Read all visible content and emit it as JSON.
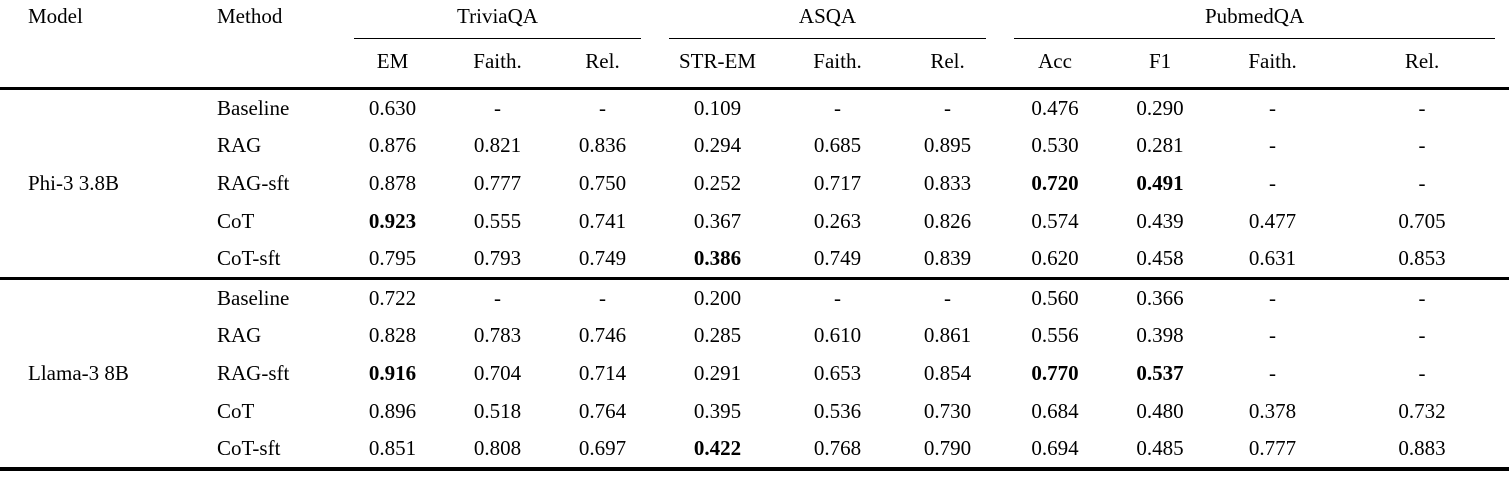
{
  "colors": {
    "background": "#ffffff",
    "text": "#000000",
    "rule": "#000000"
  },
  "table": {
    "header": {
      "model": "Model",
      "method": "Method",
      "groups": [
        {
          "label": "TriviaQA",
          "subcols": [
            "EM",
            "Faith.",
            "Rel."
          ]
        },
        {
          "label": "ASQA",
          "subcols": [
            "STR-EM",
            "Faith.",
            "Rel."
          ]
        },
        {
          "label": "PubmedQA",
          "subcols": [
            "Acc",
            "F1",
            "Faith.",
            "Rel."
          ]
        }
      ]
    },
    "blocks": [
      {
        "model": "Phi-3 3.8B",
        "rows": [
          {
            "method": "Baseline",
            "cells": [
              {
                "v": "0.630"
              },
              {
                "v": "-"
              },
              {
                "v": "-"
              },
              {
                "v": "0.109"
              },
              {
                "v": "-"
              },
              {
                "v": "-"
              },
              {
                "v": "0.476"
              },
              {
                "v": "0.290"
              },
              {
                "v": "-"
              },
              {
                "v": "-"
              }
            ]
          },
          {
            "method": "RAG",
            "cells": [
              {
                "v": "0.876"
              },
              {
                "v": "0.821"
              },
              {
                "v": "0.836"
              },
              {
                "v": "0.294"
              },
              {
                "v": "0.685"
              },
              {
                "v": "0.895"
              },
              {
                "v": "0.530"
              },
              {
                "v": "0.281"
              },
              {
                "v": "-"
              },
              {
                "v": "-"
              }
            ]
          },
          {
            "method": "RAG-sft",
            "cells": [
              {
                "v": "0.878"
              },
              {
                "v": "0.777"
              },
              {
                "v": "0.750"
              },
              {
                "v": "0.252"
              },
              {
                "v": "0.717"
              },
              {
                "v": "0.833"
              },
              {
                "v": "0.720",
                "bold": true
              },
              {
                "v": "0.491",
                "bold": true
              },
              {
                "v": "-"
              },
              {
                "v": "-"
              }
            ]
          },
          {
            "method": "CoT",
            "cells": [
              {
                "v": "0.923",
                "bold": true
              },
              {
                "v": "0.555"
              },
              {
                "v": "0.741"
              },
              {
                "v": "0.367"
              },
              {
                "v": "0.263"
              },
              {
                "v": "0.826"
              },
              {
                "v": "0.574"
              },
              {
                "v": "0.439"
              },
              {
                "v": "0.477"
              },
              {
                "v": "0.705"
              }
            ]
          },
          {
            "method": "CoT-sft",
            "cells": [
              {
                "v": "0.795"
              },
              {
                "v": "0.793"
              },
              {
                "v": "0.749"
              },
              {
                "v": "0.386",
                "bold": true
              },
              {
                "v": "0.749"
              },
              {
                "v": "0.839"
              },
              {
                "v": "0.620"
              },
              {
                "v": "0.458"
              },
              {
                "v": "0.631"
              },
              {
                "v": "0.853"
              }
            ]
          }
        ]
      },
      {
        "model": "Llama-3 8B",
        "rows": [
          {
            "method": "Baseline",
            "cells": [
              {
                "v": "0.722"
              },
              {
                "v": "-"
              },
              {
                "v": "-"
              },
              {
                "v": "0.200"
              },
              {
                "v": "-"
              },
              {
                "v": "-"
              },
              {
                "v": "0.560"
              },
              {
                "v": "0.366"
              },
              {
                "v": "-"
              },
              {
                "v": "-"
              }
            ]
          },
          {
            "method": "RAG",
            "cells": [
              {
                "v": "0.828"
              },
              {
                "v": "0.783"
              },
              {
                "v": "0.746"
              },
              {
                "v": "0.285"
              },
              {
                "v": "0.610"
              },
              {
                "v": "0.861"
              },
              {
                "v": "0.556"
              },
              {
                "v": "0.398"
              },
              {
                "v": "-"
              },
              {
                "v": "-"
              }
            ]
          },
          {
            "method": "RAG-sft",
            "cells": [
              {
                "v": "0.916",
                "bold": true
              },
              {
                "v": "0.704"
              },
              {
                "v": "0.714"
              },
              {
                "v": "0.291"
              },
              {
                "v": "0.653"
              },
              {
                "v": "0.854"
              },
              {
                "v": "0.770",
                "bold": true
              },
              {
                "v": "0.537",
                "bold": true
              },
              {
                "v": "-"
              },
              {
                "v": "-"
              }
            ]
          },
          {
            "method": "CoT",
            "cells": [
              {
                "v": "0.896"
              },
              {
                "v": "0.518"
              },
              {
                "v": "0.764"
              },
              {
                "v": "0.395"
              },
              {
                "v": "0.536"
              },
              {
                "v": "0.730"
              },
              {
                "v": "0.684"
              },
              {
                "v": "0.480"
              },
              {
                "v": "0.378"
              },
              {
                "v": "0.732"
              }
            ]
          },
          {
            "method": "CoT-sft",
            "cells": [
              {
                "v": "0.851"
              },
              {
                "v": "0.808"
              },
              {
                "v": "0.697"
              },
              {
                "v": "0.422",
                "bold": true
              },
              {
                "v": "0.768"
              },
              {
                "v": "0.790"
              },
              {
                "v": "0.694"
              },
              {
                "v": "0.485"
              },
              {
                "v": "0.777"
              },
              {
                "v": "0.883"
              }
            ]
          }
        ]
      }
    ]
  }
}
